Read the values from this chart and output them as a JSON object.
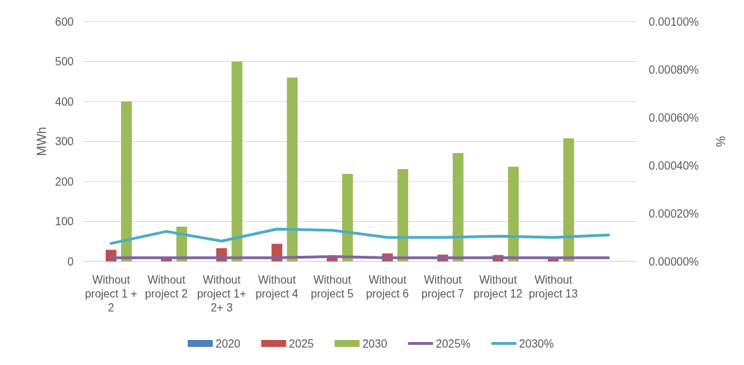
{
  "chart_data": {
    "type": "bar",
    "ylabel": "MWh",
    "y2label": "%",
    "categories": [
      "Without project 1 + 2",
      "Without project 2",
      "Without project 1+ 2+ 3",
      "Without project 4",
      "Without project 5",
      "Without project 6",
      "Without project 7",
      "Without project 12",
      "Without project 13",
      null
    ],
    "series": [
      {
        "name": "2020",
        "color": "#4f81bd",
        "values": [
          0,
          0,
          0,
          0,
          0,
          0,
          0,
          0,
          0,
          null
        ]
      },
      {
        "name": "2025",
        "color": "#c0504d",
        "values": [
          29,
          10,
          33,
          44,
          14,
          20,
          17,
          16,
          9,
          null
        ]
      },
      {
        "name": "2030",
        "color": "#9bbb59",
        "values": [
          400,
          87,
          500,
          460,
          219,
          231,
          271,
          237,
          308,
          null
        ]
      },
      {
        "name": "2025%",
        "type": "line",
        "axis": "y2",
        "color": "#8064a2",
        "values": [
          1.5e-05,
          1.5e-05,
          1.5e-05,
          1.5e-05,
          2e-05,
          1.5e-05,
          1.5e-05,
          1.5e-05,
          1.5e-05,
          1.5e-05
        ]
      },
      {
        "name": "2030%",
        "type": "line",
        "axis": "y2",
        "color": "#4bacc6",
        "values": [
          7.5e-05,
          0.000125,
          8.5e-05,
          0.000135,
          0.00013,
          0.0001,
          0.0001,
          0.000105,
          0.0001,
          0.00011
        ]
      }
    ],
    "ylim": [
      0,
      600
    ],
    "yticks": [
      0,
      100,
      200,
      300,
      400,
      500,
      600
    ],
    "y2lim": [
      0,
      0.001
    ],
    "y2ticks": [
      {
        "value": 0,
        "label": "0.00000%"
      },
      {
        "value": 0.0002,
        "label": "0.00020%"
      },
      {
        "value": 0.0004,
        "label": "0.00040%"
      },
      {
        "value": 0.0006,
        "label": "0.00060%"
      },
      {
        "value": 0.0008,
        "label": "0.00080%"
      },
      {
        "value": 0.001,
        "label": "0.00100%"
      }
    ],
    "grid": "y",
    "legend": "bottom",
    "line_style": "solid"
  }
}
